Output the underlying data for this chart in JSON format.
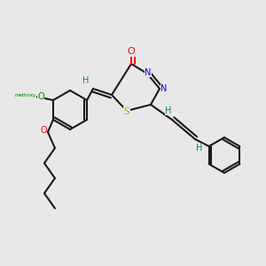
{
  "bg_color": "#e8e8e8",
  "bond_color": "#1a1a1a",
  "N_color": "#0000ee",
  "O_color": "#ff0000",
  "S_color": "#c8a000",
  "H_color": "#008080",
  "methoxy_color": "#008000",
  "figsize": [
    3.0,
    3.0
  ],
  "dpi": 100,
  "xlim": [
    0,
    300
  ],
  "ylim": [
    0,
    300
  ]
}
